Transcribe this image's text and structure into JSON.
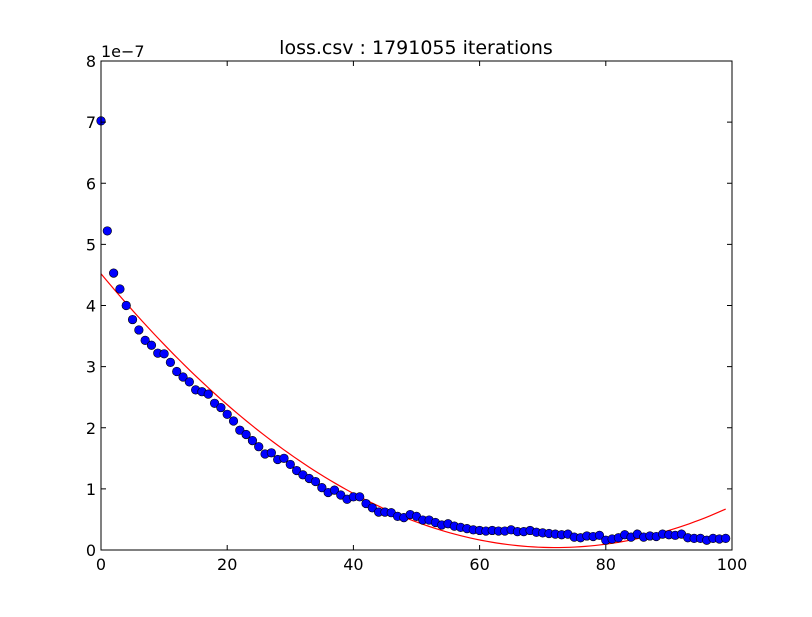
{
  "chart_data": {
    "type": "scatter",
    "title": "loss.csv : 1791055 iterations",
    "xlabel": "",
    "ylabel": "",
    "y_offset_label": "1e−7",
    "xlim": [
      0,
      100
    ],
    "ylim": [
      0,
      8
    ],
    "xticks": [
      "0",
      "20",
      "40",
      "60",
      "80",
      "100"
    ],
    "yticks": [
      "0",
      "1",
      "2",
      "3",
      "4",
      "5",
      "6",
      "7",
      "8"
    ],
    "grid": false,
    "legend": "none",
    "colors": {
      "points": "#0000ff",
      "point_edge": "#000000",
      "fit": "#ff0000"
    },
    "series": [
      {
        "kind": "points",
        "x": [
          0,
          1,
          2,
          3,
          4,
          5,
          6,
          7,
          8,
          9,
          10,
          11,
          12,
          13,
          14,
          15,
          16,
          17,
          18,
          19,
          20,
          21,
          22,
          23,
          24,
          25,
          26,
          27,
          28,
          29,
          30,
          31,
          32,
          33,
          34,
          35,
          36,
          37,
          38,
          39,
          40,
          41,
          42,
          43,
          44,
          45,
          46,
          47,
          48,
          49,
          50,
          51,
          52,
          53,
          54,
          55,
          56,
          57,
          58,
          59,
          60,
          61,
          62,
          63,
          64,
          65,
          66,
          67,
          68,
          69,
          70,
          71,
          72,
          73,
          74,
          75,
          76,
          77,
          78,
          79,
          80,
          81,
          82,
          83,
          84,
          85,
          86,
          87,
          88,
          89,
          90,
          91,
          92,
          93,
          94,
          95,
          96,
          97,
          98,
          99
        ],
        "y": [
          7.02,
          5.22,
          4.53,
          4.27,
          4.0,
          3.77,
          3.6,
          3.43,
          3.35,
          3.22,
          3.21,
          3.07,
          2.92,
          2.83,
          2.75,
          2.62,
          2.59,
          2.55,
          2.4,
          2.33,
          2.22,
          2.11,
          1.96,
          1.89,
          1.79,
          1.69,
          1.57,
          1.59,
          1.48,
          1.5,
          1.4,
          1.3,
          1.23,
          1.17,
          1.12,
          1.02,
          0.94,
          0.98,
          0.9,
          0.83,
          0.87,
          0.87,
          0.76,
          0.69,
          0.62,
          0.62,
          0.61,
          0.55,
          0.53,
          0.58,
          0.55,
          0.49,
          0.49,
          0.45,
          0.41,
          0.43,
          0.39,
          0.37,
          0.35,
          0.33,
          0.32,
          0.31,
          0.32,
          0.31,
          0.31,
          0.33,
          0.3,
          0.3,
          0.32,
          0.29,
          0.28,
          0.27,
          0.26,
          0.25,
          0.26,
          0.21,
          0.2,
          0.23,
          0.22,
          0.24,
          0.16,
          0.18,
          0.2,
          0.25,
          0.21,
          0.26,
          0.21,
          0.23,
          0.22,
          0.26,
          0.25,
          0.24,
          0.26,
          0.2,
          0.19,
          0.19,
          0.16,
          0.19,
          0.18,
          0.19
        ]
      },
      {
        "kind": "fit-curve",
        "shape": "quadratic",
        "x_range": [
          0,
          99
        ],
        "y_at_start": 4.52,
        "vertex": [
          72,
          0.04
        ],
        "y_at_end": 0.62
      }
    ]
  }
}
